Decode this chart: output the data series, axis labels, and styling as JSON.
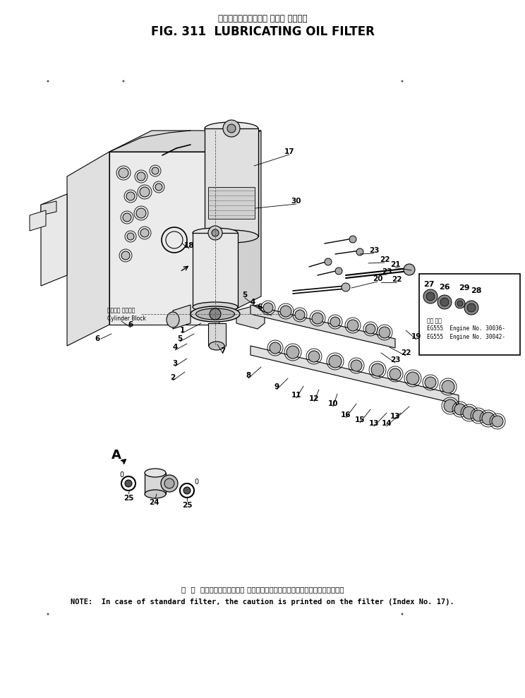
{
  "title_japanese": "ルーブリケーティング オイル フィルタ",
  "title_english": "FIG. 311  LUBRICATING OIL FILTER",
  "note_japanese": "注  ：  標準フィルタの場合． その注意書きはフィルタ上に印刷されています．",
  "note_english": "NOTE:  In case of standard filter, the caution is printed on the filter (Index No. 17).",
  "cylinder_block_jp": "シリンダ ブロック",
  "cylinder_block_en": "Cylinder Block",
  "inset_title1": "EG555  Engine No. 30036-",
  "inset_title2": "EG555  Engine No. 30042-",
  "bg_color": "#ffffff",
  "fig_width": 7.44,
  "fig_height": 9.89,
  "dpi": 100
}
